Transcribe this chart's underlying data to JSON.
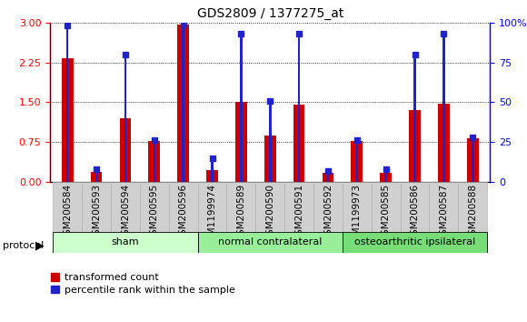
{
  "title": "GDS2809 / 1377275_at",
  "samples": [
    "GSM200584",
    "GSM200593",
    "GSM200594",
    "GSM200595",
    "GSM200596",
    "GSM1199974",
    "GSM200589",
    "GSM200590",
    "GSM200591",
    "GSM200592",
    "GSM1199973",
    "GSM200585",
    "GSM200586",
    "GSM200587",
    "GSM200588"
  ],
  "red_values": [
    2.32,
    0.18,
    1.2,
    0.77,
    2.97,
    0.22,
    1.5,
    0.87,
    1.45,
    0.17,
    0.77,
    0.17,
    1.35,
    1.47,
    0.82
  ],
  "blue_values": [
    98,
    8,
    80,
    26,
    99,
    15,
    93,
    51,
    93,
    7,
    26,
    8,
    80,
    93,
    28
  ],
  "groups": [
    {
      "label": "sham",
      "start": 0,
      "end": 5
    },
    {
      "label": "normal contralateral",
      "start": 5,
      "end": 10
    },
    {
      "label": "osteoarthritic ipsilateral",
      "start": 10,
      "end": 15
    }
  ],
  "group_colors": [
    "#ccffcc",
    "#99ee99",
    "#77dd77"
  ],
  "left_ticks": [
    0,
    0.75,
    1.5,
    2.25,
    3.0
  ],
  "right_ticks": [
    0,
    25,
    50,
    75,
    100
  ],
  "red_bar_width": 0.4,
  "blue_bar_width": 0.08,
  "red_color": "#cc0000",
  "blue_color": "#2222cc",
  "bg_color": "#ffffff",
  "plot_bg": "#ffffff",
  "protocol_label": "protocol",
  "legend_items": [
    "transformed count",
    "percentile rank within the sample"
  ],
  "tick_label_fontsize": 7.5,
  "title_fontsize": 10
}
